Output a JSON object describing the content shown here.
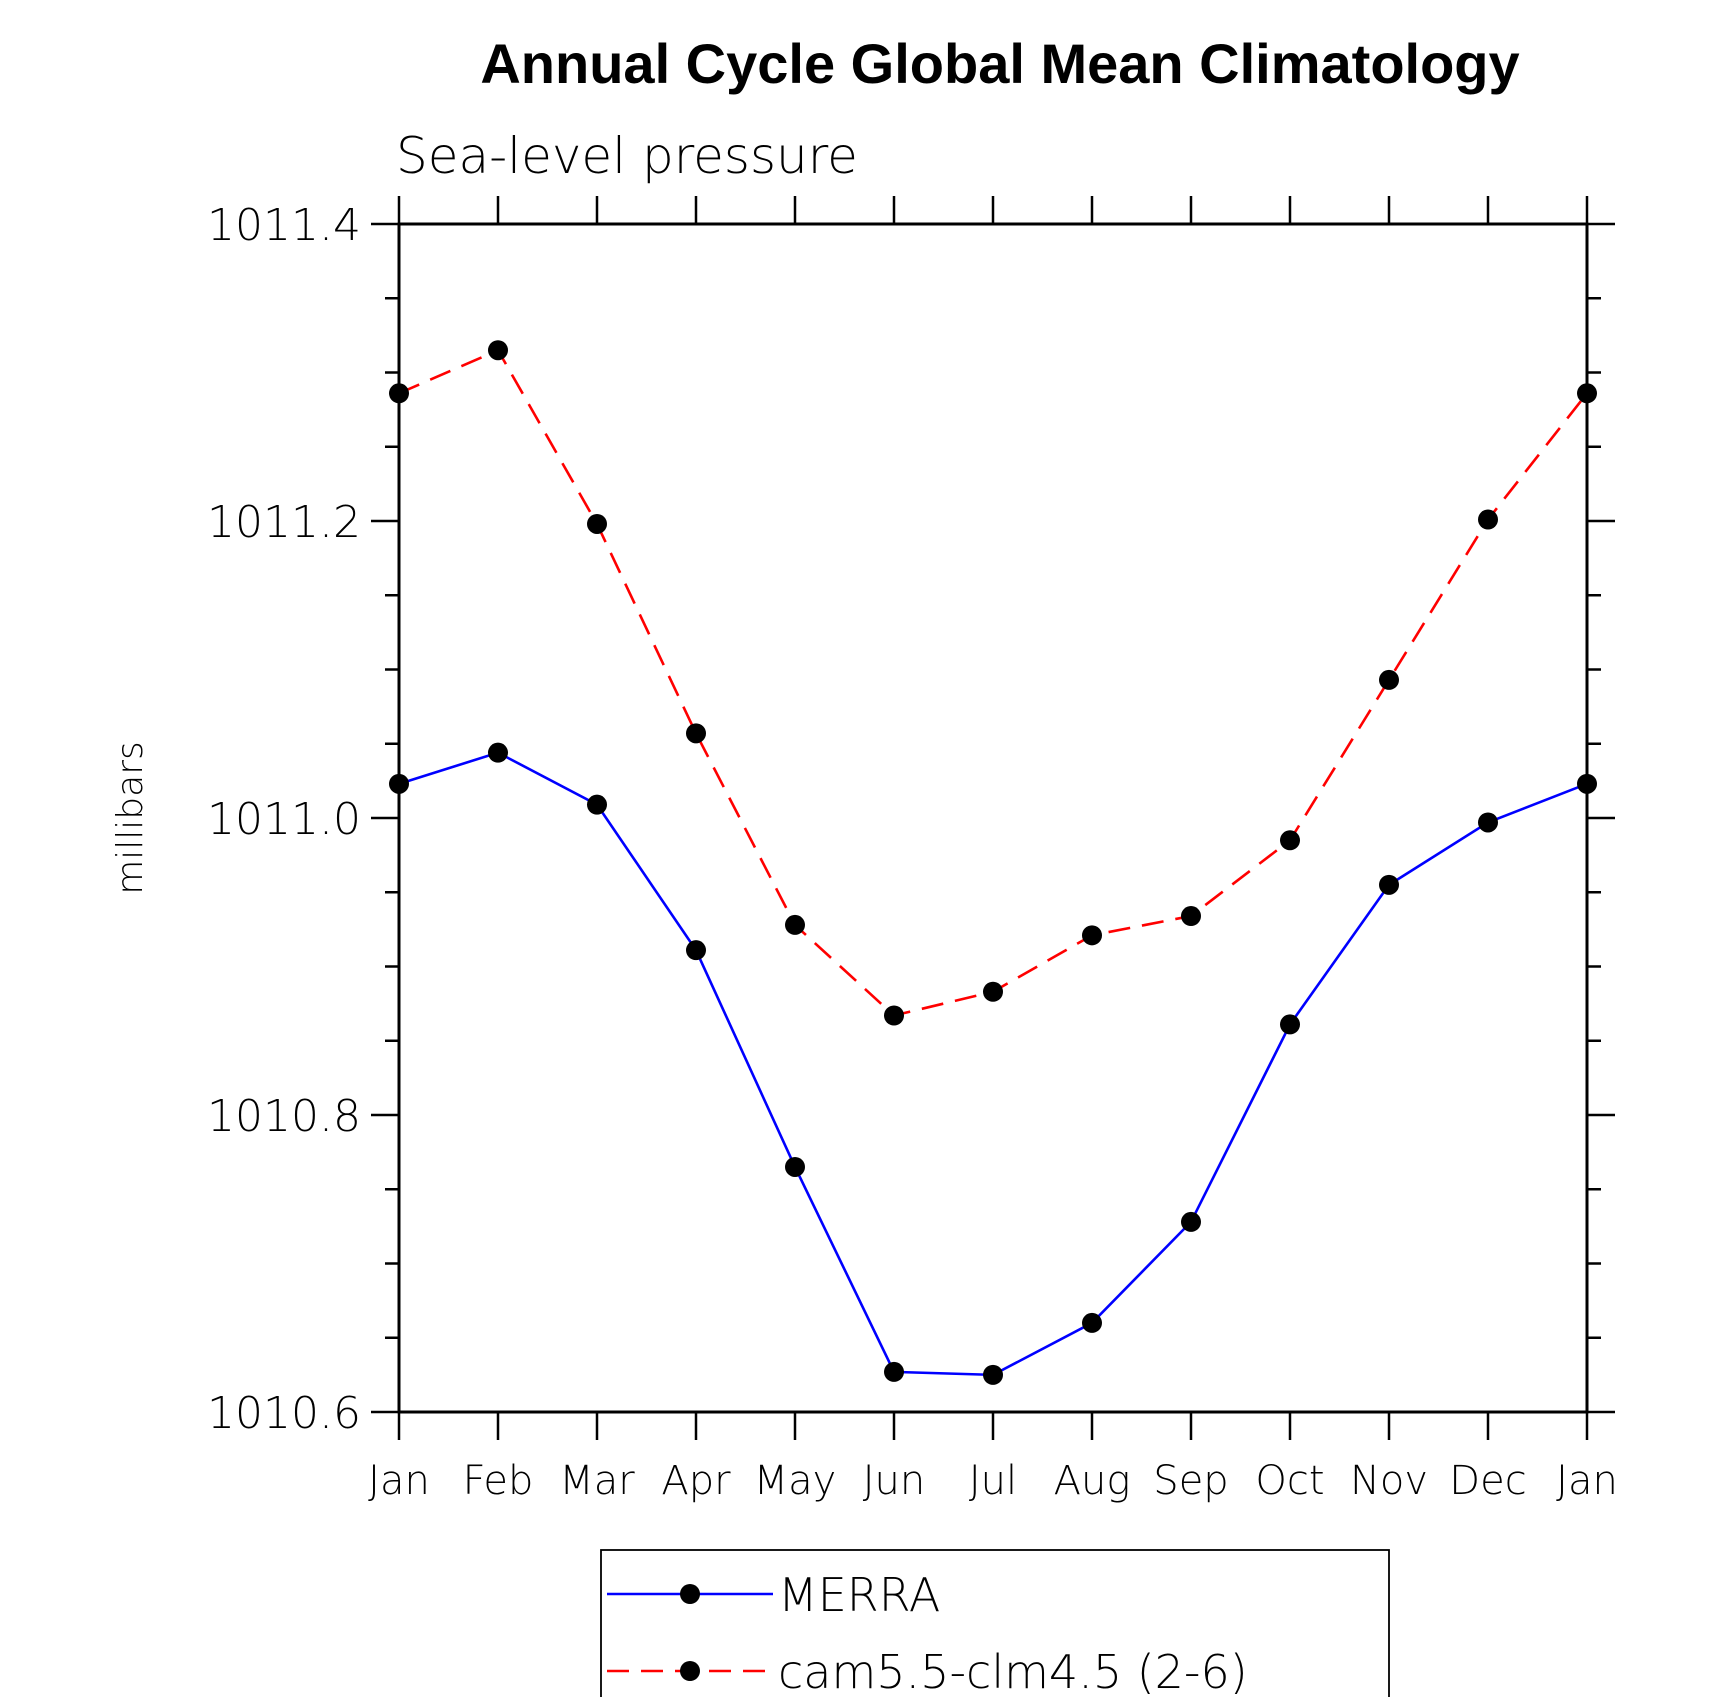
{
  "chart_data": {
    "type": "line",
    "title": "Annual Cycle Global Mean Climatology",
    "subtitle": "Sea-level pressure",
    "xlabel": "",
    "ylabel": "millibars",
    "categories": [
      "Jan",
      "Feb",
      "Mar",
      "Apr",
      "May",
      "Jun",
      "Jul",
      "Aug",
      "Sep",
      "Oct",
      "Nov",
      "Dec",
      "Jan"
    ],
    "ylim": [
      1010.6,
      1011.4
    ],
    "yticks": [
      1010.6,
      1010.8,
      1011.0,
      1011.2,
      1011.4
    ],
    "ytick_labels": [
      "1010.6",
      "1010.8",
      "1011.0",
      "1011.2",
      "1011.4"
    ],
    "legend_position": "bottom",
    "series": [
      {
        "name": "MERRA",
        "color": "#0000ff",
        "dash": "solid",
        "marker": "filled-circle",
        "values": [
          1011.023,
          1011.044,
          1011.009,
          1010.911,
          1010.765,
          1010.627,
          1010.625,
          1010.66,
          1010.728,
          1010.861,
          1010.955,
          1010.997,
          1011.023
        ]
      },
      {
        "name": "cam5.5-clm4.5 (2-6)",
        "color": "#ff0000",
        "dash": "dashed",
        "marker": "filled-circle",
        "values": [
          1011.286,
          1011.315,
          1011.198,
          1011.057,
          1010.928,
          1010.867,
          1010.883,
          1010.921,
          1010.934,
          1010.985,
          1011.093,
          1011.201,
          1011.286
        ]
      }
    ]
  }
}
